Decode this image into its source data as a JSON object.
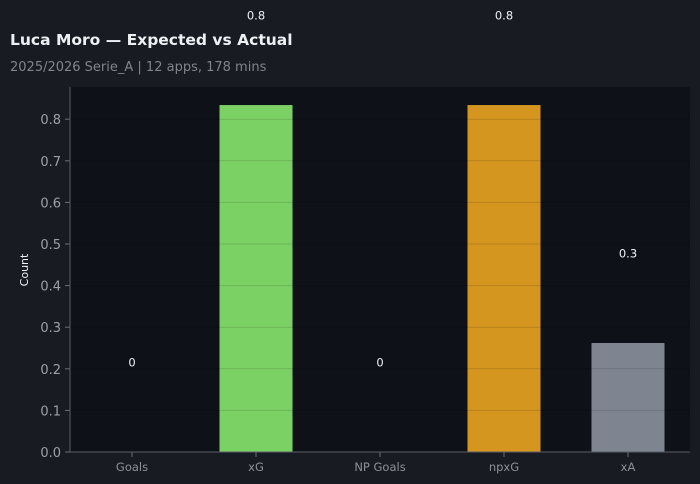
{
  "chart_data": {
    "type": "bar",
    "title": "Luca Moro — Expected vs Actual",
    "subtitle": "2025/2026 Serie_A | 12 apps, 178 mins",
    "categories": [
      "Goals",
      "xG",
      "NP Goals",
      "npxG",
      "xA"
    ],
    "values": [
      0,
      0.834,
      0,
      0.834,
      0.262
    ],
    "data_labels": [
      "0",
      "0.8",
      "0",
      "0.8",
      "0.3"
    ],
    "colors": [
      "#7cd165",
      "#7cd165",
      "#d4961f",
      "#d4961f",
      "#7f8590"
    ],
    "xlabel": "",
    "ylabel": "Count",
    "ylim": [
      0,
      0.877
    ],
    "yticks": [
      "0.0",
      "0.1",
      "0.2",
      "0.3",
      "0.4",
      "0.5",
      "0.6",
      "0.7",
      "0.8"
    ],
    "grid": true,
    "background": "#0e1118"
  }
}
